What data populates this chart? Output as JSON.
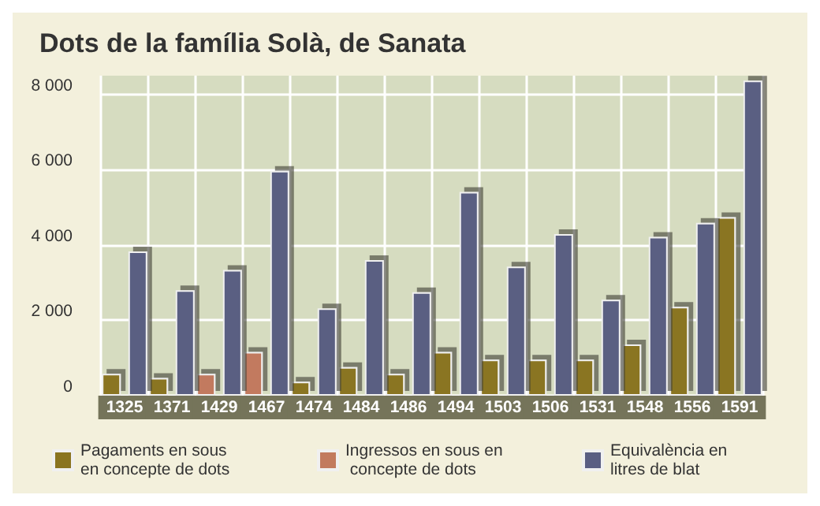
{
  "chart_data": {
    "type": "bar",
    "title": "Dots de la família Solà, de Sanata",
    "categories": [
      "1325",
      "1371",
      "1429",
      "1467",
      "1474",
      "1484",
      "1486",
      "1494",
      "1503",
      "1506",
      "1531",
      "1548",
      "1556",
      "1591"
    ],
    "series": [
      {
        "name": "Pagaments en sous en concepte de dots",
        "color": "#8a7420",
        "values": [
          580,
          470,
          null,
          null,
          370,
          760,
          580,
          1160,
          960,
          960,
          960,
          1360,
          2360,
          4740
        ]
      },
      {
        "name": "Ingressos en sous en concepte de dots",
        "color": "#c27a5e",
        "values": [
          null,
          null,
          580,
          1160,
          null,
          null,
          null,
          null,
          null,
          null,
          null,
          null,
          null,
          null
        ]
      },
      {
        "name": "Equivalència en litres de blat",
        "color": "#5a5e82",
        "values": [
          3830,
          2800,
          3340,
          5970,
          2320,
          3600,
          2750,
          5410,
          3430,
          4290,
          2550,
          4220,
          4590,
          8370
        ]
      }
    ],
    "ylim": [
      0,
      8500
    ],
    "yticks": [
      0,
      {
        "value": 2000,
        "label": "2 000"
      },
      {
        "value": 4000,
        "label": "4 000"
      },
      {
        "value": 6000,
        "label": "6 000"
      },
      {
        "value": 8000,
        "label": "8 000"
      }
    ],
    "grid": true,
    "legend": "bottom"
  }
}
